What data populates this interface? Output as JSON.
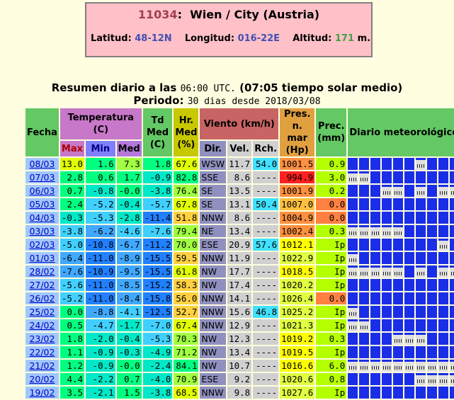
{
  "station": {
    "id": "11034",
    "name": "Wien / City (Austria)",
    "lat_label": "Latitud:",
    "lat": "48-12N",
    "lon_label": "Longitud:",
    "lon": "016-22E",
    "alt_label": "Altitud:",
    "alt": "171",
    "alt_unit": "m."
  },
  "summary": {
    "line1a": "Resumen diario a las",
    "time": "06:00 UTC.",
    "line1b": "(07:05 tiempo solar medio)",
    "line2a": "Periodo:",
    "period": "30 dias desde 2018/03/08"
  },
  "headers": {
    "fecha": "Fecha",
    "temp": "Temperatura (C)",
    "max": "Max",
    "min": "Min",
    "med": "Med",
    "td": "Td Med (C)",
    "hr": "Hr. Med (%)",
    "viento": "Viento (km/h)",
    "dir": "Dir.",
    "vel": "Vel.",
    "rch": "Rch.",
    "pres": "Pres. n. mar (Hp)",
    "prec": "Prec. (mm)",
    "diario": "Diario meteorológico"
  },
  "rows": [
    {
      "fecha": "08/03",
      "max": "13.0",
      "min": "1.6",
      "med": "7.3",
      "td": "1.8",
      "hr": "67.6",
      "dir": "WSW",
      "vel": "11.7",
      "rch": "54.0",
      "pres": "1001.5",
      "prec": "0.9",
      "icons": [
        0,
        0,
        0,
        0,
        0,
        0,
        1,
        0,
        0,
        0
      ]
    },
    {
      "fecha": "07/03",
      "max": "2.8",
      "min": "0.6",
      "med": "1.7",
      "td": "-0.9",
      "hr": "82.8",
      "dir": "SSE",
      "vel": "8.6",
      "rch": "----",
      "pres": "994.9",
      "prec": "3.0",
      "icons": [
        1,
        1,
        0,
        0,
        0,
        0,
        0,
        0,
        0,
        0
      ]
    },
    {
      "fecha": "06/03",
      "max": "0.7",
      "min": "-0.8",
      "med": "-0.0",
      "td": "-3.8",
      "hr": "76.4",
      "dir": "SE",
      "vel": "13.5",
      "rch": "----",
      "pres": "1001.9",
      "prec": "0.2",
      "icons": [
        0,
        0,
        0,
        1,
        1,
        0,
        1,
        0,
        1,
        1
      ]
    },
    {
      "fecha": "05/03",
      "max": "2.4",
      "min": "-5.2",
      "med": "-0.4",
      "td": "-5.7",
      "hr": "67.8",
      "dir": "SE",
      "vel": "13.1",
      "rch": "50.4",
      "pres": "1007.0",
      "prec": "0.0",
      "icons": [
        0,
        0,
        0,
        0,
        0,
        0,
        0,
        0,
        0,
        0
      ]
    },
    {
      "fecha": "04/03",
      "max": "-0.3",
      "min": "-5.3",
      "med": "-2.8",
      "td": "-11.4",
      "hr": "51.8",
      "dir": "NNW",
      "vel": "8.6",
      "rch": "----",
      "pres": "1004.9",
      "prec": "0.0",
      "icons": [
        0,
        0,
        0,
        0,
        0,
        0,
        0,
        0,
        0,
        0
      ]
    },
    {
      "fecha": "03/03",
      "max": "-3.8",
      "min": "-6.2",
      "med": "-4.6",
      "td": "-7.6",
      "hr": "79.4",
      "dir": "NE",
      "vel": "13.4",
      "rch": "----",
      "pres": "1002.4",
      "prec": "0.3",
      "icons": [
        1,
        1,
        1,
        1,
        1,
        0,
        0,
        0,
        0,
        0
      ]
    },
    {
      "fecha": "02/03",
      "max": "-5.0",
      "min": "-10.8",
      "med": "-6.7",
      "td": "-11.2",
      "hr": "70.0",
      "dir": "ESE",
      "vel": "20.9",
      "rch": "57.6",
      "pres": "1012.1",
      "prec": "Ip",
      "icons": [
        0,
        0,
        0,
        0,
        0,
        0,
        0,
        0,
        1,
        0
      ]
    },
    {
      "fecha": "01/03",
      "max": "-6.4",
      "min": "-11.0",
      "med": "-8.9",
      "td": "-15.5",
      "hr": "59.5",
      "dir": "NNW",
      "vel": "11.9",
      "rch": "----",
      "pres": "1022.9",
      "prec": "Ip",
      "icons": [
        1,
        0,
        0,
        0,
        0,
        0,
        0,
        0,
        0,
        0
      ]
    },
    {
      "fecha": "28/02",
      "max": "-7.6",
      "min": "-10.9",
      "med": "-9.5",
      "td": "-15.5",
      "hr": "61.8",
      "dir": "NW",
      "vel": "17.7",
      "rch": "----",
      "pres": "1018.5",
      "prec": "Ip",
      "icons": [
        1,
        1,
        1,
        1,
        1,
        0,
        1,
        0,
        1,
        1
      ]
    },
    {
      "fecha": "27/02",
      "max": "-5.6",
      "min": "-11.0",
      "med": "-8.5",
      "td": "-15.2",
      "hr": "58.3",
      "dir": "NW",
      "vel": "17.4",
      "rch": "----",
      "pres": "1020.2",
      "prec": "Ip",
      "icons": [
        0,
        0,
        0,
        0,
        0,
        0,
        0,
        0,
        0,
        0
      ]
    },
    {
      "fecha": "26/02",
      "max": "-5.2",
      "min": "-11.0",
      "med": "-8.4",
      "td": "-15.8",
      "hr": "56.0",
      "dir": "NNW",
      "vel": "14.1",
      "rch": "----",
      "pres": "1026.4",
      "prec": "0.0",
      "icons": [
        0,
        0,
        0,
        0,
        0,
        0,
        0,
        0,
        0,
        0
      ]
    },
    {
      "fecha": "25/02",
      "max": "0.0",
      "min": "-8.8",
      "med": "-4.1",
      "td": "-12.5",
      "hr": "52.7",
      "dir": "NNW",
      "vel": "15.6",
      "rch": "46.8",
      "pres": "1025.2",
      "prec": "Ip",
      "icons": [
        1,
        0,
        0,
        0,
        0,
        0,
        0,
        0,
        0,
        0
      ]
    },
    {
      "fecha": "24/02",
      "max": "0.5",
      "min": "-4.7",
      "med": "-1.7",
      "td": "-7.0",
      "hr": "67.4",
      "dir": "NNW",
      "vel": "12.9",
      "rch": "----",
      "pres": "1021.3",
      "prec": "Ip",
      "icons": [
        1,
        1,
        0,
        0,
        0,
        0,
        0,
        0,
        0,
        0
      ]
    },
    {
      "fecha": "23/02",
      "max": "1.8",
      "min": "-2.0",
      "med": "-0.4",
      "td": "-5.3",
      "hr": "70.3",
      "dir": "NW",
      "vel": "12.3",
      "rch": "----",
      "pres": "1019.2",
      "prec": "0.3",
      "icons": [
        0,
        0,
        0,
        0,
        1,
        1,
        1,
        0,
        0,
        0
      ]
    },
    {
      "fecha": "22/02",
      "max": "1.1",
      "min": "-0.9",
      "med": "-0.3",
      "td": "-4.9",
      "hr": "71.2",
      "dir": "NW",
      "vel": "13.4",
      "rch": "----",
      "pres": "1019.5",
      "prec": "Ip",
      "icons": [
        0,
        0,
        0,
        0,
        0,
        0,
        0,
        0,
        0,
        0
      ]
    },
    {
      "fecha": "21/02",
      "max": "1.2",
      "min": "-0.9",
      "med": "-0.0",
      "td": "-2.4",
      "hr": "84.1",
      "dir": "NW",
      "vel": "10.7",
      "rch": "----",
      "pres": "1016.6",
      "prec": "6.0",
      "icons": [
        1,
        1,
        1,
        1,
        1,
        1,
        1,
        1,
        1,
        1
      ]
    },
    {
      "fecha": "20/02",
      "max": "4.4",
      "min": "-2.2",
      "med": "0.7",
      "td": "-4.0",
      "hr": "70.9",
      "dir": "ESE",
      "vel": "9.2",
      "rch": "----",
      "pres": "1020.6",
      "prec": "0.8",
      "icons": [
        0,
        0,
        0,
        0,
        0,
        0,
        1,
        1,
        1,
        1
      ]
    },
    {
      "fecha": "19/02",
      "max": "3.5",
      "min": "-2.1",
      "med": "1.5",
      "td": "-3.8",
      "hr": "68.5",
      "dir": "NNW",
      "vel": "9.8",
      "rch": "----",
      "pres": "1027.6",
      "prec": "Ip",
      "icons": [
        0,
        0,
        0,
        0,
        0,
        0,
        0,
        0,
        0,
        0
      ]
    }
  ]
}
